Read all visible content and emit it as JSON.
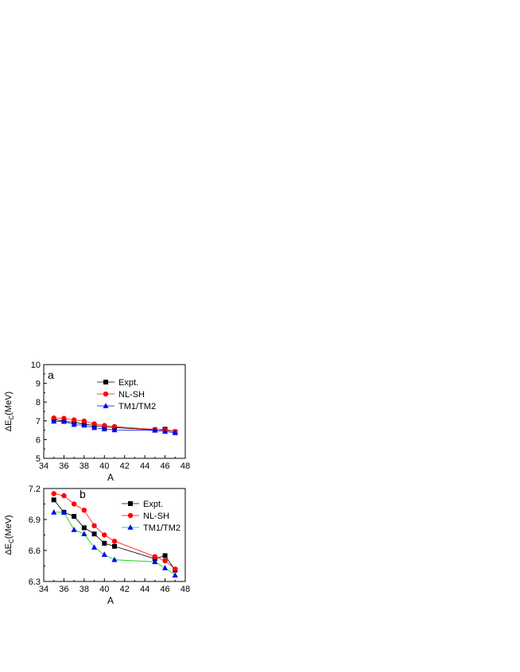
{
  "chart_data": [
    {
      "type": "line",
      "panel_label": "a",
      "xlabel": "A",
      "ylabel_main": "ΔE",
      "ylabel_sub": "C",
      "ylabel_unit": "(MeV)",
      "xlim": [
        34,
        48
      ],
      "ylim": [
        5,
        10
      ],
      "xticks": [
        "34",
        "36",
        "38",
        "40",
        "42",
        "44",
        "46",
        "48"
      ],
      "yticks": [
        "5",
        "6",
        "7",
        "8",
        "9",
        "10"
      ],
      "x": [
        35,
        36,
        37,
        38,
        39,
        40,
        41,
        45,
        46,
        47
      ],
      "legend_position": "top-right",
      "series": [
        {
          "name": "Expt.",
          "marker": "square",
          "color": "#000000",
          "line_color": "#000000",
          "values": [
            7.09,
            6.97,
            6.93,
            6.82,
            6.76,
            6.67,
            6.64,
            6.52,
            6.55,
            6.41
          ]
        },
        {
          "name": "NL-SH",
          "marker": "circle",
          "color": "#ff0000",
          "line_color": "#ff0000",
          "values": [
            7.15,
            7.13,
            7.05,
            6.99,
            6.84,
            6.75,
            6.69,
            6.54,
            6.5,
            6.42
          ]
        },
        {
          "name": "TM1/TM2",
          "marker": "triangle",
          "color": "#0000ff",
          "line_color": "#0000ff",
          "values": [
            6.97,
            6.97,
            6.8,
            6.76,
            6.63,
            6.56,
            6.51,
            6.49,
            6.43,
            6.36
          ]
        }
      ]
    },
    {
      "type": "line",
      "panel_label": "b",
      "xlabel": "A",
      "ylabel_main": "ΔE",
      "ylabel_sub": "C",
      "ylabel_unit": "(MeV)",
      "xlim": [
        34,
        48
      ],
      "ylim": [
        6.3,
        7.2
      ],
      "xticks": [
        "34",
        "36",
        "38",
        "40",
        "42",
        "44",
        "46",
        "48"
      ],
      "yticks": [
        "6.3",
        "6.6",
        "6.9",
        "7.2"
      ],
      "x": [
        35,
        36,
        37,
        38,
        39,
        40,
        41,
        45,
        46,
        47
      ],
      "legend_position": "top-right",
      "series": [
        {
          "name": "Expt.",
          "marker": "square",
          "color": "#000000",
          "line_color": "#000000",
          "values": [
            7.09,
            6.97,
            6.93,
            6.82,
            6.76,
            6.67,
            6.64,
            6.52,
            6.55,
            6.41
          ]
        },
        {
          "name": "NL-SH",
          "marker": "circle",
          "color": "#ff0000",
          "line_color": "#ff0000",
          "values": [
            7.15,
            7.13,
            7.05,
            6.99,
            6.84,
            6.75,
            6.69,
            6.54,
            6.5,
            6.42
          ]
        },
        {
          "name": "TM1/TM2",
          "marker": "triangle",
          "color": "#0000ff",
          "line_color": "#00cc00",
          "values": [
            6.97,
            6.97,
            6.8,
            6.76,
            6.63,
            6.56,
            6.51,
            6.49,
            6.43,
            6.36
          ]
        }
      ]
    }
  ]
}
